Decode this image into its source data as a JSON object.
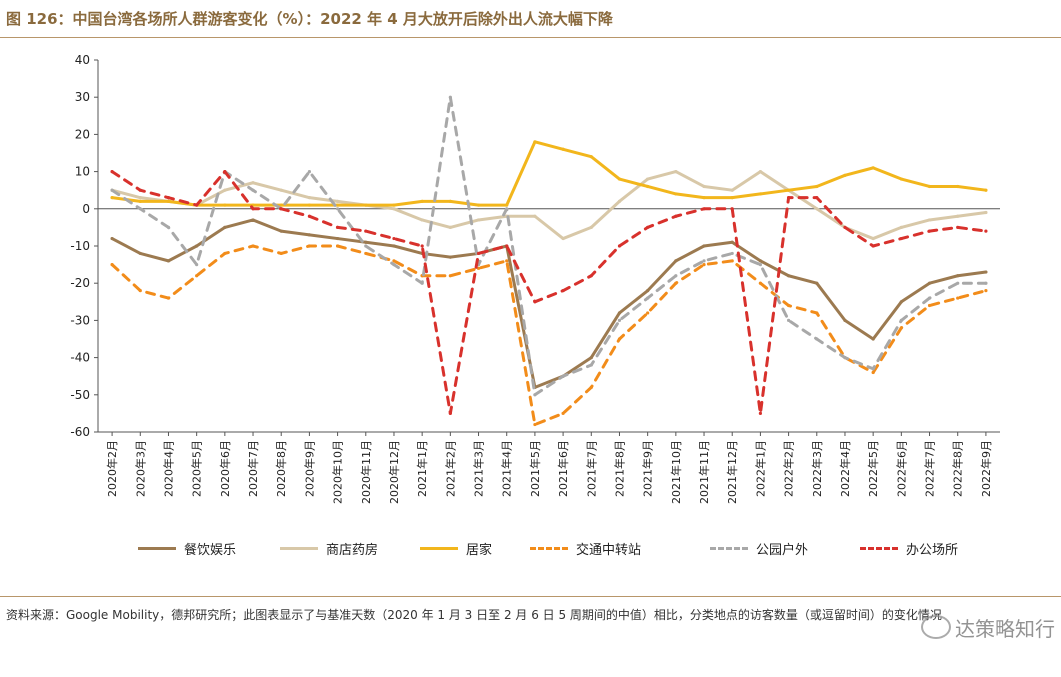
{
  "title": "图 126：中国台湾各场所人群游客变化（%）：2022 年 4 月大放开后除外出人流大幅下降",
  "source_note": "资料来源：Google Mobility，德邦研究所；此图表显示了与基准天数（2020 年 1 月 3 日至 2 月 6 日 5 周期间的中值）相比，分类地点的访客数量（或逗留时间）的变化情况",
  "watermark": "达策略知行",
  "chart_data": {
    "type": "line",
    "ylim": [
      -60,
      40
    ],
    "yticks": [
      40,
      30,
      20,
      10,
      0,
      -10,
      -20,
      -30,
      -40,
      -50,
      -60
    ],
    "x": [
      "2020年2月",
      "2020年3月",
      "2020年4月",
      "2020年5月",
      "2020年6月",
      "2020年7月",
      "2020年8月",
      "2020年9月",
      "2020年10月",
      "2020年11月",
      "2020年12月",
      "2021年1月",
      "2021年2月",
      "2021年3月",
      "2021年4月",
      "2021年5月",
      "2021年6月",
      "2021年7月",
      "2021年8月",
      "2021年9月",
      "2021年10月",
      "2021年11月",
      "2021年12月",
      "2022年1月",
      "2022年2月",
      "2022年3月",
      "2022年4月",
      "2022年5月",
      "2022年6月",
      "2022年7月",
      "2022年8月",
      "2022年9月"
    ],
    "series": [
      {
        "name": "餐饮娱乐",
        "color": "#9c7a50",
        "dash": "solid",
        "values": [
          -8,
          -12,
          -14,
          -10,
          -5,
          -3,
          -6,
          -7,
          -8,
          -9,
          -10,
          -12,
          -13,
          -12,
          -10,
          -48,
          -45,
          -40,
          -28,
          -22,
          -14,
          -10,
          -9,
          -14,
          -18,
          -20,
          -30,
          -35,
          -25,
          -20,
          -18,
          -17
        ]
      },
      {
        "name": "商店药房",
        "color": "#d8c8a8",
        "dash": "solid",
        "values": [
          5,
          3,
          2,
          1,
          5,
          7,
          5,
          3,
          2,
          1,
          0,
          -3,
          -5,
          -3,
          -2,
          -2,
          -8,
          -5,
          2,
          8,
          10,
          6,
          5,
          10,
          5,
          0,
          -5,
          -8,
          -5,
          -3,
          -2,
          -1
        ]
      },
      {
        "name": "居家",
        "color": "#f2b61c",
        "dash": "solid",
        "values": [
          3,
          2,
          2,
          1,
          1,
          1,
          1,
          1,
          1,
          1,
          1,
          2,
          2,
          1,
          1,
          18,
          16,
          14,
          8,
          6,
          4,
          3,
          3,
          4,
          5,
          6,
          9,
          11,
          8,
          6,
          6,
          5
        ]
      },
      {
        "name": "交通中转站",
        "color": "#f28c1a",
        "dash": "dash",
        "values": [
          -15,
          -22,
          -24,
          -18,
          -12,
          -10,
          -12,
          -10,
          -10,
          -12,
          -14,
          -18,
          -18,
          -16,
          -14,
          -58,
          -55,
          -48,
          -35,
          -28,
          -20,
          -15,
          -14,
          -20,
          -26,
          -28,
          -40,
          -44,
          -32,
          -26,
          -24,
          -22
        ]
      },
      {
        "name": "公园户外",
        "color": "#a8a8a8",
        "dash": "dash",
        "values": [
          5,
          0,
          -5,
          -15,
          10,
          5,
          0,
          10,
          0,
          -10,
          -15,
          -20,
          30,
          -15,
          0,
          -50,
          -45,
          -42,
          -30,
          -24,
          -18,
          -14,
          -12,
          -15,
          -30,
          -35,
          -40,
          -43,
          -30,
          -24,
          -20,
          -20
        ]
      },
      {
        "name": "办公场所",
        "color": "#d8312c",
        "dash": "dash",
        "values": [
          10,
          5,
          3,
          1,
          10,
          0,
          0,
          -2,
          -5,
          -6,
          -8,
          -10,
          -55,
          -12,
          -10,
          -25,
          -22,
          -18,
          -10,
          -5,
          -2,
          0,
          0,
          -55,
          3,
          3,
          -5,
          -10,
          -8,
          -6,
          -5,
          -6
        ]
      }
    ]
  }
}
